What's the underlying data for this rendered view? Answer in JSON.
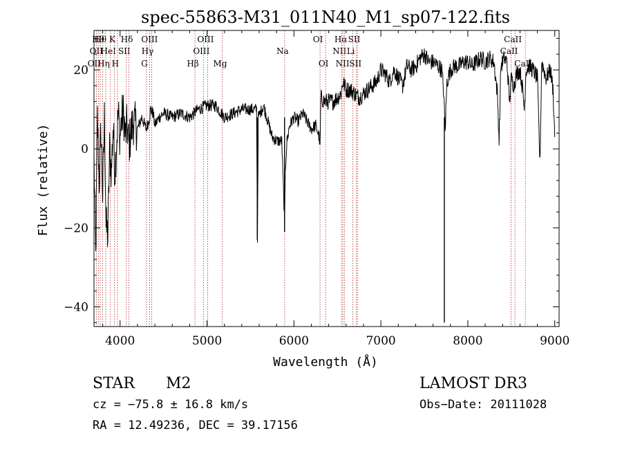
{
  "chart_data": {
    "type": "line",
    "title": "spec-55863-M31_011N40_M1_sp07-122.fits",
    "xlabel": "Wavelength (Å)",
    "ylabel": "Flux (relative)",
    "xlim": [
      3700,
      9050
    ],
    "ylim": [
      -45,
      30
    ],
    "xticks": [
      4000,
      5000,
      6000,
      7000,
      8000,
      9000
    ],
    "yticks": [
      -40,
      -20,
      0,
      20
    ],
    "grid": false,
    "line_color": "#000000",
    "marker_color": "#b22222",
    "spectrum_anchors": [
      [
        3700,
        -2
      ],
      [
        3720,
        -28
      ],
      [
        3740,
        8
      ],
      [
        3760,
        -8
      ],
      [
        3780,
        5
      ],
      [
        3800,
        -12
      ],
      [
        3820,
        8
      ],
      [
        3840,
        -20
      ],
      [
        3860,
        -22
      ],
      [
        3880,
        0
      ],
      [
        3900,
        -6
      ],
      [
        3920,
        6
      ],
      [
        3940,
        -6
      ],
      [
        3960,
        2
      ],
      [
        3980,
        9
      ],
      [
        4000,
        3
      ],
      [
        4020,
        8
      ],
      [
        4040,
        9
      ],
      [
        4060,
        3
      ],
      [
        4080,
        6
      ],
      [
        4100,
        1
      ],
      [
        4150,
        7
      ],
      [
        4200,
        5
      ],
      [
        4250,
        8
      ],
      [
        4300,
        5
      ],
      [
        4340,
        8
      ],
      [
        4350,
        10
      ],
      [
        4380,
        9
      ],
      [
        4400,
        6
      ],
      [
        4450,
        8
      ],
      [
        4500,
        9
      ],
      [
        4600,
        8
      ],
      [
        4700,
        9
      ],
      [
        4800,
        8
      ],
      [
        4900,
        10
      ],
      [
        5000,
        11
      ],
      [
        5100,
        11
      ],
      [
        5200,
        8
      ],
      [
        5300,
        9
      ],
      [
        5400,
        10
      ],
      [
        5500,
        10
      ],
      [
        5570,
        10
      ],
      [
        5580,
        -23
      ],
      [
        5590,
        8
      ],
      [
        5650,
        11
      ],
      [
        5700,
        7
      ],
      [
        5750,
        3
      ],
      [
        5800,
        2
      ],
      [
        5860,
        2
      ],
      [
        5885,
        -14
      ],
      [
        5893,
        -20
      ],
      [
        5900,
        -5
      ],
      [
        5920,
        2
      ],
      [
        5950,
        6
      ],
      [
        6000,
        8
      ],
      [
        6050,
        7
      ],
      [
        6100,
        9
      ],
      [
        6150,
        7
      ],
      [
        6200,
        5
      ],
      [
        6250,
        6
      ],
      [
        6290,
        3
      ],
      [
        6300,
        0
      ],
      [
        6310,
        13
      ],
      [
        6350,
        12
      ],
      [
        6400,
        12
      ],
      [
        6450,
        12
      ],
      [
        6500,
        13
      ],
      [
        6540,
        14
      ],
      [
        6563,
        17
      ],
      [
        6600,
        15
      ],
      [
        6650,
        15
      ],
      [
        6700,
        14
      ],
      [
        6750,
        13
      ],
      [
        6800,
        14
      ],
      [
        6850,
        15
      ],
      [
        6900,
        16
      ],
      [
        6950,
        17
      ],
      [
        7000,
        20
      ],
      [
        7050,
        19
      ],
      [
        7100,
        17
      ],
      [
        7150,
        20
      ],
      [
        7200,
        18
      ],
      [
        7250,
        16
      ],
      [
        7300,
        21
      ],
      [
        7350,
        20
      ],
      [
        7400,
        21
      ],
      [
        7450,
        23
      ],
      [
        7500,
        24
      ],
      [
        7550,
        22
      ],
      [
        7600,
        22
      ],
      [
        7660,
        21
      ],
      [
        7700,
        20
      ],
      [
        7720,
        15
      ],
      [
        7740,
        5
      ],
      [
        7760,
        17
      ],
      [
        7800,
        20
      ],
      [
        7850,
        21
      ],
      [
        7900,
        21
      ],
      [
        7950,
        22
      ],
      [
        8000,
        22
      ],
      [
        8050,
        21
      ],
      [
        8100,
        22
      ],
      [
        8150,
        23
      ],
      [
        8200,
        22
      ],
      [
        8250,
        23
      ],
      [
        8300,
        22
      ],
      [
        8340,
        14
      ],
      [
        8360,
        2
      ],
      [
        8380,
        21
      ],
      [
        8420,
        23
      ],
      [
        8450,
        22
      ],
      [
        8480,
        12
      ],
      [
        8500,
        18
      ],
      [
        8530,
        16
      ],
      [
        8560,
        19
      ],
      [
        8600,
        20
      ],
      [
        8630,
        15
      ],
      [
        8650,
        10
      ],
      [
        8670,
        20
      ],
      [
        8700,
        21
      ],
      [
        8750,
        20
      ],
      [
        8800,
        18
      ],
      [
        8830,
        -4
      ],
      [
        8850,
        22
      ],
      [
        8900,
        18
      ],
      [
        8950,
        20
      ],
      [
        8980,
        15
      ],
      [
        9000,
        3
      ]
    ],
    "deep_absorptions": [
      {
        "x": 5578,
        "y": -23
      },
      {
        "x": 5892,
        "y": -21
      },
      {
        "x": 7730,
        "y": -44
      }
    ],
    "line_markers": [
      {
        "wavelength": 3727,
        "labels": [
          "OII"
        ],
        "row": 3
      },
      {
        "wavelength": 3750,
        "labels": [
          "OII"
        ],
        "row": 2
      },
      {
        "wavelength": 3771,
        "labels": [
          "Hθ"
        ],
        "row": 1
      },
      {
        "wavelength": 3798,
        "labels": [
          "Hθ"
        ],
        "row": 1
      },
      {
        "wavelength": 3835,
        "labels": [
          "Hη"
        ],
        "row": 3
      },
      {
        "wavelength": 3889,
        "labels": [
          "HeI"
        ],
        "row": 2
      },
      {
        "wavelength": 3934,
        "labels": [
          "K"
        ],
        "row": 1
      },
      {
        "wavelength": 3969,
        "labels": [
          "H"
        ],
        "row": 3
      },
      {
        "wavelength": 4072,
        "labels": [
          "SII"
        ],
        "row": 2
      },
      {
        "wavelength": 4102,
        "labels": [
          "Hδ"
        ],
        "row": 1
      },
      {
        "wavelength": 4304,
        "labels": [
          "G"
        ],
        "row": 3
      },
      {
        "wavelength": 4340,
        "labels": [
          "Hγ"
        ],
        "row": 2
      },
      {
        "wavelength": 4363,
        "labels": [
          "OIII"
        ],
        "row": 1
      },
      {
        "wavelength": 4861,
        "labels": [
          "Hβ"
        ],
        "row": 3
      },
      {
        "wavelength": 4959,
        "labels": [
          "OIII"
        ],
        "row": 2
      },
      {
        "wavelength": 5007,
        "labels": [
          "OIII"
        ],
        "row": 1
      },
      {
        "wavelength": 5175,
        "labels": [
          "Mg"
        ],
        "row": 3
      },
      {
        "wavelength": 5893,
        "labels": [
          "Na"
        ],
        "row": 2
      },
      {
        "wavelength": 6300,
        "labels": [
          "OI"
        ],
        "row": 1
      },
      {
        "wavelength": 6364,
        "labels": [
          "OI"
        ],
        "row": 3
      },
      {
        "wavelength": 6548,
        "labels": [
          "NII"
        ],
        "row": 2
      },
      {
        "wavelength": 6563,
        "labels": [
          "Hα"
        ],
        "row": 1
      },
      {
        "wavelength": 6583,
        "labels": [
          "NII"
        ],
        "row": 3
      },
      {
        "wavelength": 6678,
        "labels": [
          "Li"
        ],
        "row": 2
      },
      {
        "wavelength": 6717,
        "labels": [
          "SII"
        ],
        "row": 1
      },
      {
        "wavelength": 6731,
        "labels": [
          "SII"
        ],
        "row": 3
      },
      {
        "wavelength": 8498,
        "labels": [
          "CaII"
        ],
        "row": 2
      },
      {
        "wavelength": 8542,
        "labels": [
          "CaII"
        ],
        "row": 1
      },
      {
        "wavelength": 8662,
        "labels": [
          "CaII"
        ],
        "row": 3
      }
    ]
  },
  "info": {
    "class": "STAR",
    "subclass": "M2",
    "survey": "LAMOST DR3",
    "cz": "cz = −75.8 ± 16.8 km/s",
    "obs_date": "Obs−Date: 20111028",
    "coords": "RA =  12.49236, DEC =  39.17156"
  }
}
